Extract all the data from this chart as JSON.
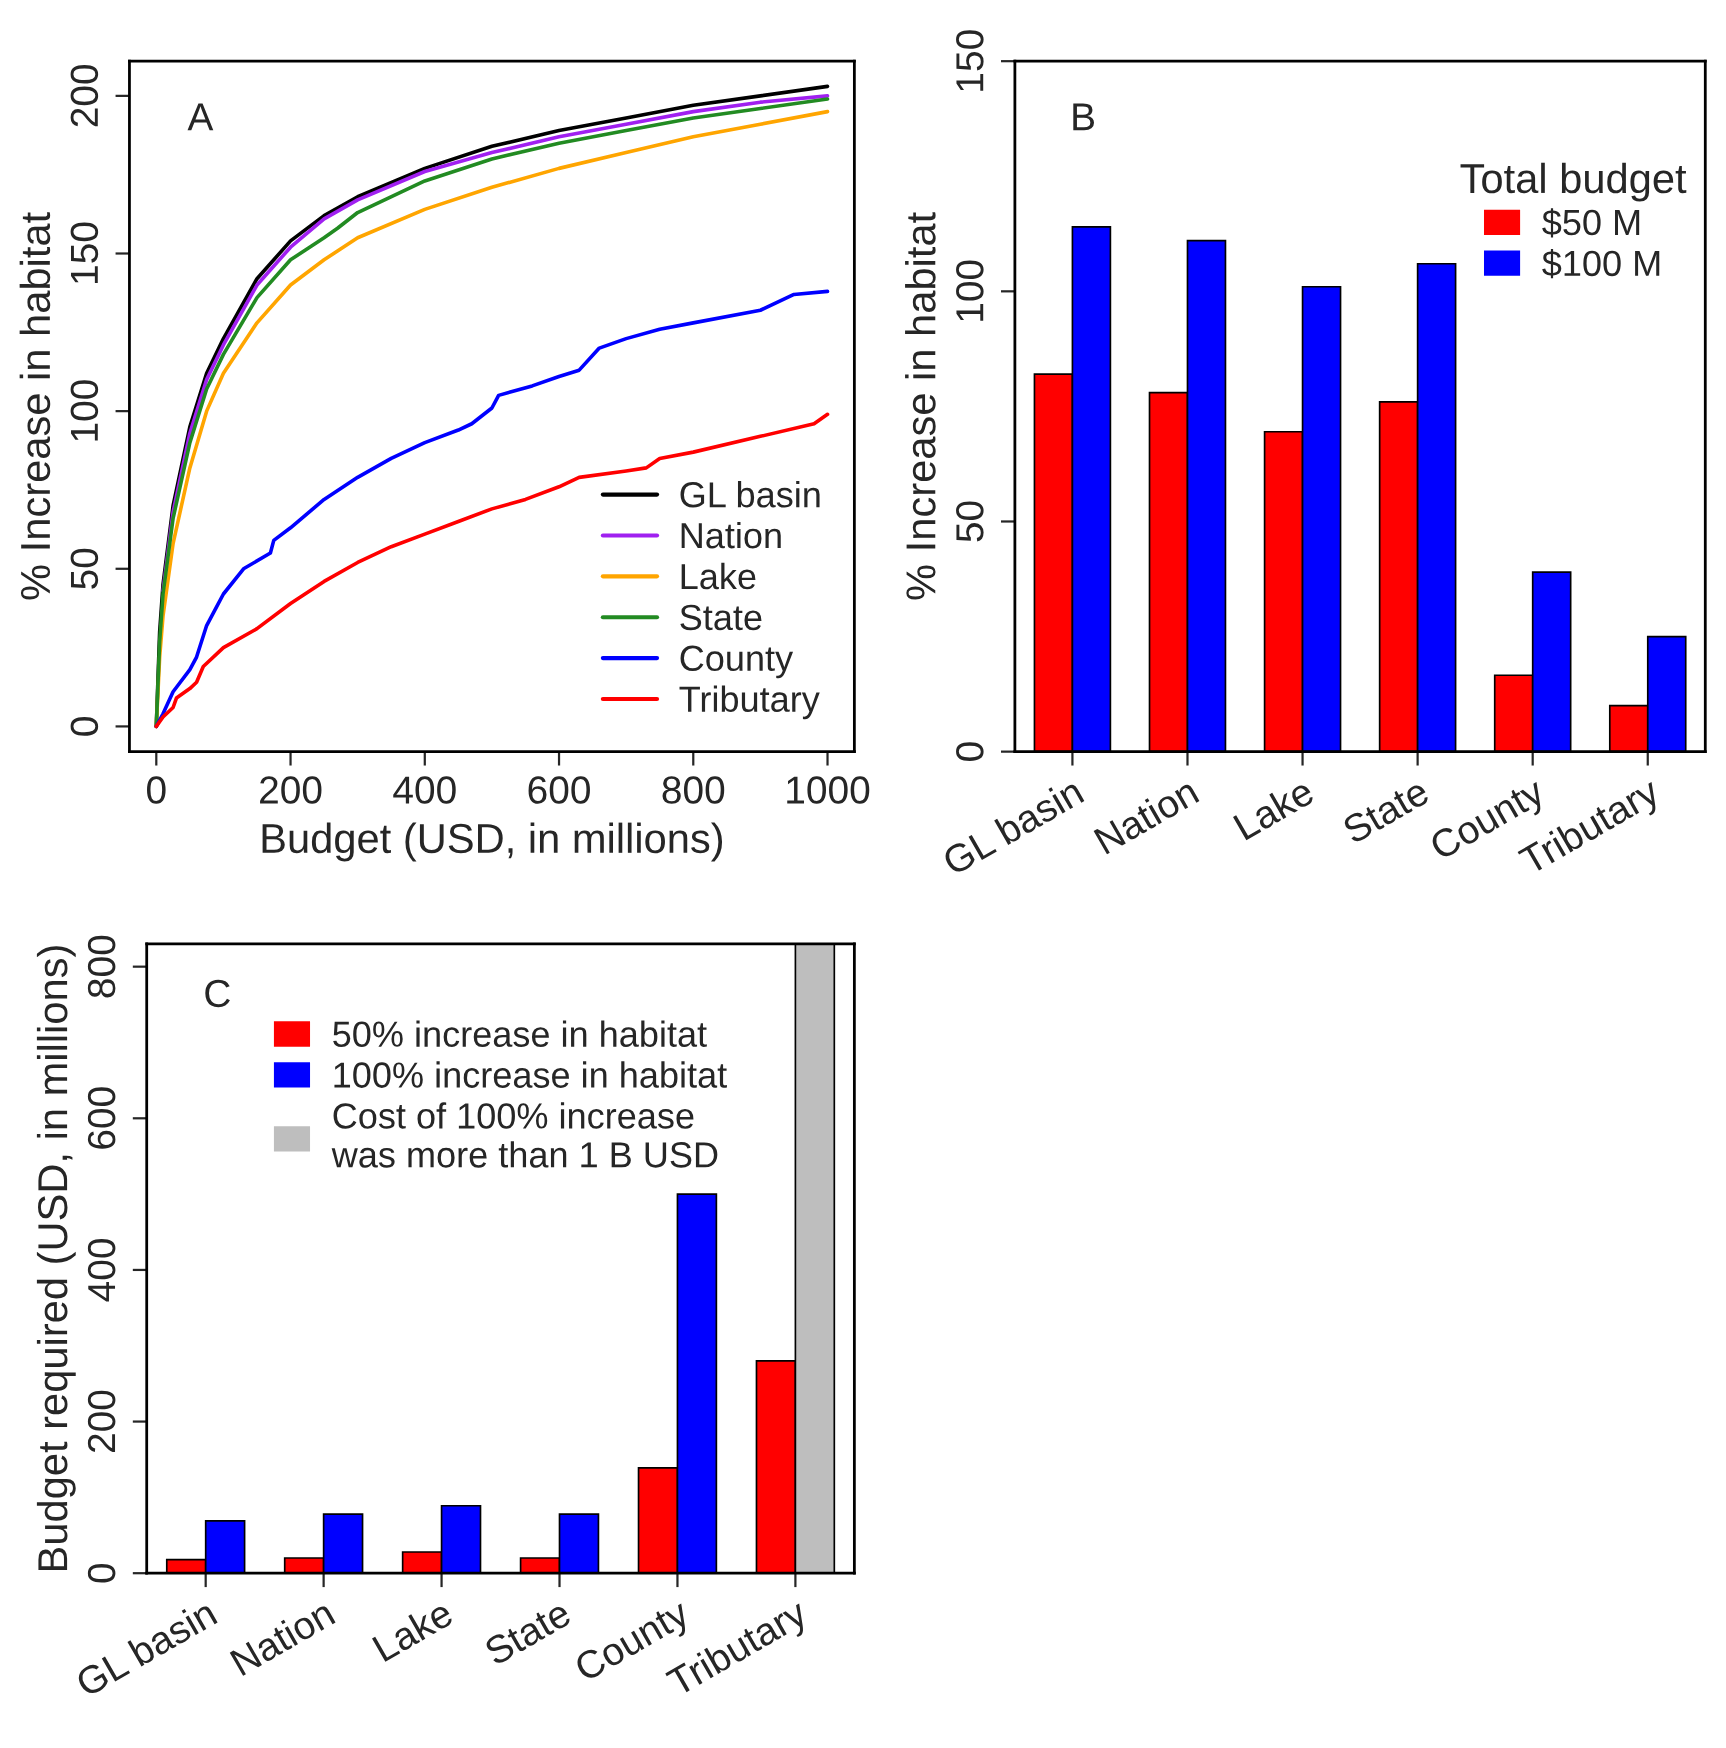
{
  "chart_data": [
    {
      "type": "line",
      "xlabel": "Budget (USD, in millions)",
      "ylabel": "% Increase in habitat",
      "annotations": [
        "A"
      ],
      "xlim": [
        -40,
        1040
      ],
      "ylim": [
        -8,
        211
      ],
      "xticks": [
        0,
        200,
        400,
        600,
        800,
        1000
      ],
      "yticks": [
        0,
        50,
        100,
        150,
        200
      ],
      "grid": false,
      "legend": "bottom right",
      "series": [
        {
          "name": "GL basin",
          "color": "#000000",
          "x": [
            0,
            5,
            10,
            25,
            50,
            75,
            100,
            150,
            200,
            250,
            300,
            400,
            500,
            600,
            700,
            800,
            900,
            1000
          ],
          "values": [
            0,
            30,
            45,
            70,
            95,
            112,
            123,
            142,
            154,
            162,
            168,
            177,
            184,
            189,
            193,
            197,
            200,
            203
          ]
        },
        {
          "name": "Nation",
          "color": "#a020f0",
          "x": [
            10,
            25,
            50,
            75,
            100,
            150,
            200,
            250,
            300,
            400,
            500,
            600,
            700,
            800,
            900,
            1000
          ],
          "values": [
            43,
            68,
            93,
            110,
            121,
            140,
            152,
            161,
            167,
            176,
            182,
            187,
            191,
            195,
            198,
            200
          ]
        },
        {
          "name": "Lake",
          "color": "#ffa500",
          "x": [
            0,
            5,
            10,
            25,
            50,
            75,
            100,
            150,
            200,
            250,
            300,
            400,
            500,
            600,
            700,
            800,
            900,
            1000
          ],
          "values": [
            0,
            22,
            35,
            58,
            82,
            100,
            112,
            128,
            140,
            148,
            155,
            164,
            171,
            177,
            182,
            187,
            191,
            195
          ]
        },
        {
          "name": "State",
          "color": "#228b22",
          "x": [
            0,
            5,
            10,
            25,
            50,
            75,
            100,
            150,
            200,
            250,
            270,
            300,
            400,
            500,
            600,
            700,
            800,
            900,
            1000
          ],
          "values": [
            0,
            27,
            42,
            66,
            90,
            107,
            118,
            136,
            148,
            155,
            158,
            163,
            173,
            180,
            185,
            189,
            193,
            196,
            199
          ]
        },
        {
          "name": "County",
          "color": "#0000ff",
          "x": [
            0,
            10,
            25,
            50,
            60,
            75,
            90,
            100,
            130,
            170,
            175,
            200,
            250,
            300,
            350,
            400,
            450,
            470,
            500,
            510,
            560,
            600,
            630,
            660,
            700,
            750,
            800,
            900,
            950,
            1000
          ],
          "values": [
            0,
            4,
            11,
            18,
            22,
            32,
            38,
            42,
            50,
            55,
            59,
            63,
            72,
            79,
            85,
            90,
            94,
            96,
            101,
            105,
            108,
            111,
            113,
            120,
            123,
            126,
            128,
            132,
            137,
            138
          ]
        },
        {
          "name": "Tributary",
          "color": "#ff0000",
          "x": [
            0,
            10,
            25,
            30,
            50,
            60,
            70,
            100,
            150,
            200,
            250,
            300,
            350,
            400,
            450,
            500,
            550,
            600,
            630,
            700,
            730,
            750,
            800,
            900,
            980,
            1000
          ],
          "values": [
            0,
            3,
            6,
            9,
            12,
            14,
            19,
            25,
            31,
            39,
            46,
            52,
            57,
            61,
            65,
            69,
            72,
            76,
            79,
            81,
            82,
            85,
            87,
            92,
            96,
            99
          ]
        }
      ]
    },
    {
      "type": "bar",
      "ylabel": "% Increase in habitat",
      "annotations": [
        "B"
      ],
      "legend_title": "Total budget",
      "categories": [
        "GL basin",
        "Nation",
        "Lake",
        "State",
        "County",
        "Tributary"
      ],
      "ylim": [
        0,
        150
      ],
      "yticks": [
        0,
        50,
        100,
        150
      ],
      "grid": false,
      "legend": "top right",
      "series": [
        {
          "name": "$50 M",
          "color": "#ff0000",
          "values": [
            82,
            78,
            69.5,
            76,
            16.6,
            10
          ]
        },
        {
          "name": "$100 M",
          "color": "#0000ff",
          "values": [
            114,
            111,
            101,
            106,
            39,
            25
          ]
        }
      ]
    },
    {
      "type": "bar",
      "ylabel": "Budget required (USD, in millions)",
      "annotations": [
        "C"
      ],
      "categories": [
        "GL basin",
        "Nation",
        "Lake",
        "State",
        "County",
        "Tributary"
      ],
      "ylim": [
        0,
        830
      ],
      "yticks": [
        0,
        200,
        400,
        600,
        800
      ],
      "grid": false,
      "legend": "top",
      "series": [
        {
          "name": "50% increase in habitat",
          "color": "#ff0000",
          "values": [
            18,
            20,
            28,
            20,
            139,
            280
          ]
        },
        {
          "name": "100% increase in habitat",
          "color": "#0000ff",
          "values": [
            69,
            78,
            89,
            78,
            500,
            null
          ]
        },
        {
          "name": "Cost of 100% increase\nwas more than 1 B USD",
          "color": "#bebebe",
          "values": [
            null,
            null,
            null,
            null,
            null,
            830
          ]
        }
      ]
    }
  ]
}
